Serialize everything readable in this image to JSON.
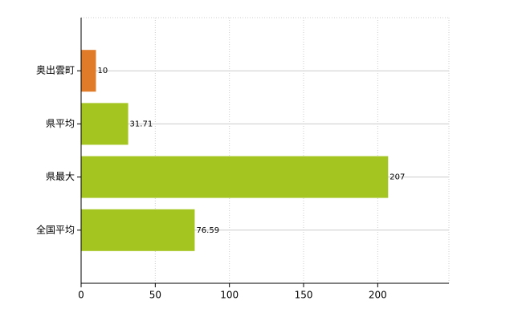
{
  "chart_data": {
    "type": "bar",
    "orientation": "horizontal",
    "categories": [
      "奥出雲町",
      "県平均",
      "県最大",
      "全国平均"
    ],
    "values": [
      10,
      31.71,
      207,
      76.59
    ],
    "colors": [
      "#e07b2a",
      "#a4c520",
      "#a4c520",
      "#a4c520"
    ],
    "xlim": [
      0,
      248
    ],
    "xticks": [
      0,
      50,
      100,
      150,
      200
    ],
    "grid": true
  }
}
